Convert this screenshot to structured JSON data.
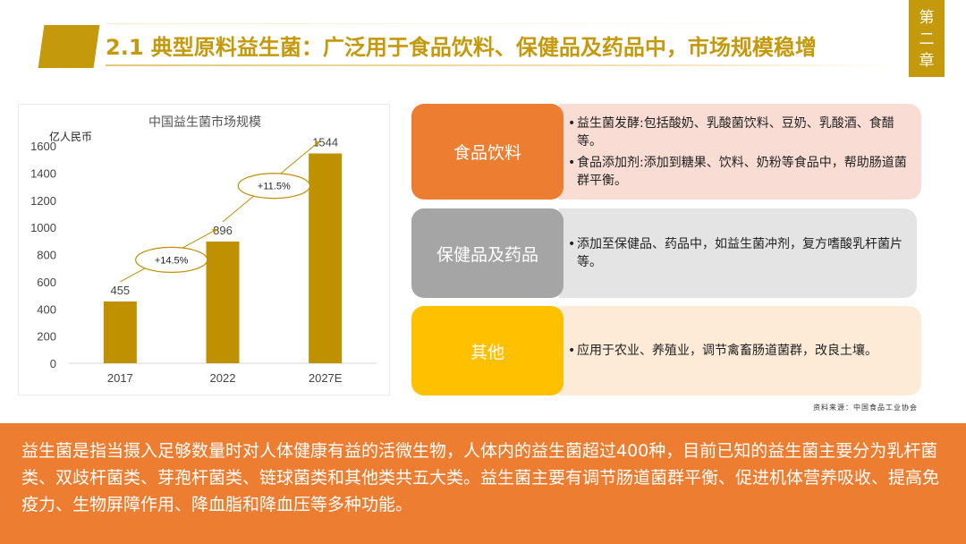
{
  "header": {
    "title": "2.1 典型原料益生菌：广泛用于食品饮料、保健品及药品中，市场规模稳增",
    "chapter_chars": [
      "第",
      "二",
      "章"
    ]
  },
  "chart_data": {
    "type": "bar",
    "title": "中国益生菌市场规模",
    "ylabel": "亿人民币",
    "categories": [
      "2017",
      "2022",
      "2027E"
    ],
    "values": [
      455,
      896,
      1544
    ],
    "ylim": [
      0,
      1600
    ],
    "yticks": [
      0,
      200,
      400,
      600,
      800,
      1000,
      1200,
      1400,
      1600
    ],
    "growth_annotations": [
      "+14.5%",
      "+11.5%"
    ],
    "bar_color": "#bf9000",
    "grid": false
  },
  "categories": [
    {
      "label": "食品饮料",
      "color": "#ed7d31",
      "bg": "#f9dcd3",
      "items": [
        "益生菌发酵:包括酸奶、乳酸菌饮料、豆奶、乳酸酒、食醋等。",
        "食品添加剂:添加到糖果、饮料、奶粉等食品中，帮助肠道菌群平衡。"
      ]
    },
    {
      "label": "保健品及药品",
      "color": "#a5a5a5",
      "bg": "#e4e4e4",
      "items": [
        "添加至保健品、药品中，如益生菌冲剂，复方嗜酸乳杆菌片等。"
      ]
    },
    {
      "label": "其他",
      "color": "#ffc000",
      "bg": "#fdebd8",
      "items": [
        "应用于农业、养殖业，调节禽畜肠道菌群，改良土壤。"
      ]
    }
  ],
  "source": "资料来源：中国食品工业协会",
  "summary": "益生菌是指当摄入足够数量时对人体健康有益的活微生物，人体内的益生菌超过400种，目前已知的益生菌主要分为乳杆菌类、双歧杆菌类、芽孢杆菌类、链球菌类和其他类共五大类。益生菌主要有调节肠道菌群平衡、促进机体营养吸收、提高免疫力、生物屏障作用、降血脂和降血压等多种功能。"
}
